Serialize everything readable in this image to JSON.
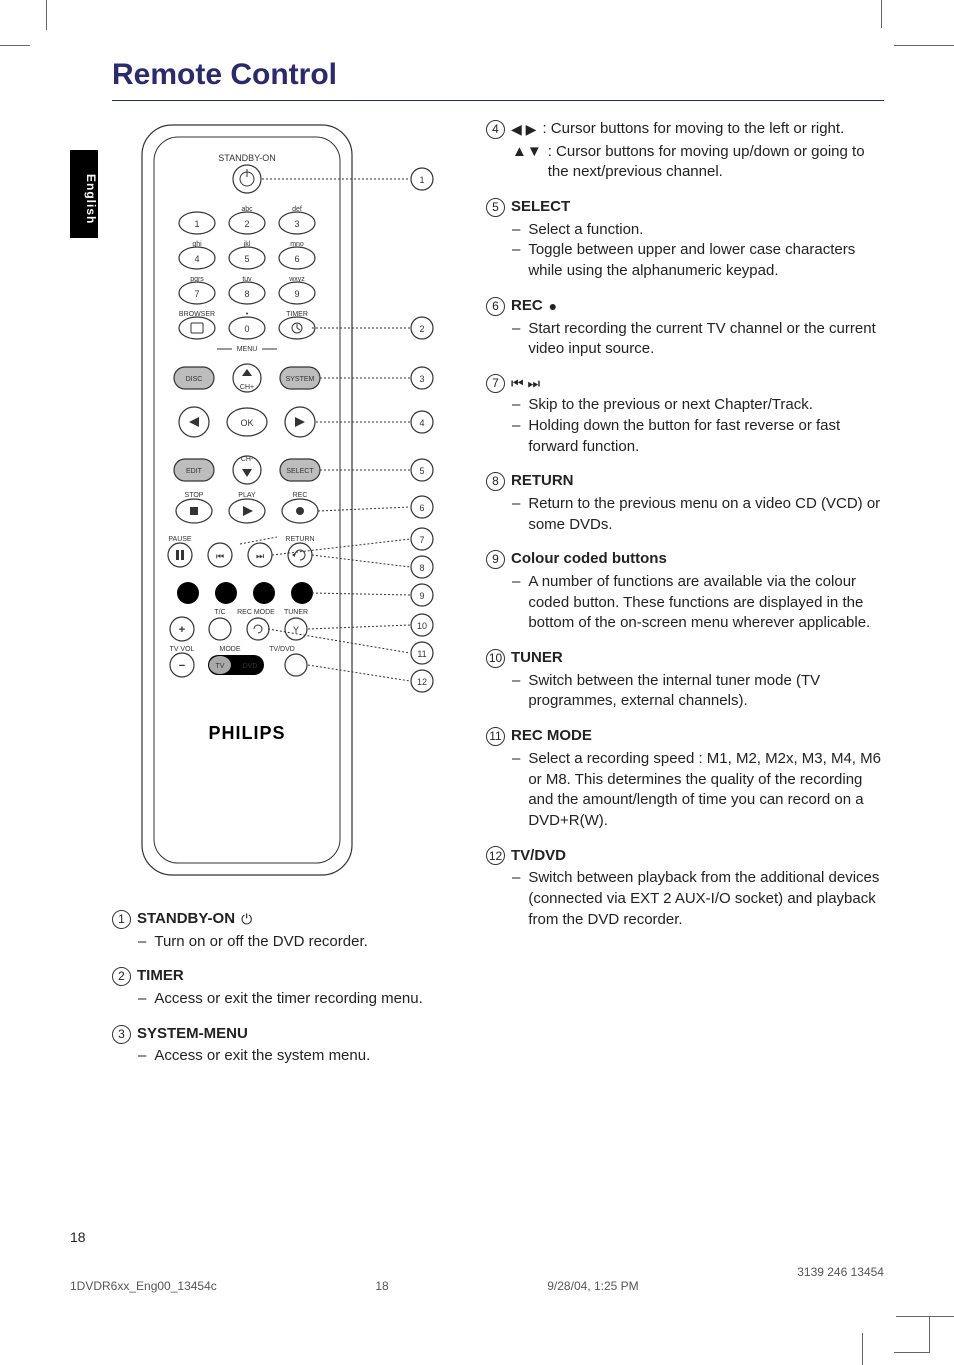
{
  "page": {
    "title": "Remote Control",
    "language_tab": "English",
    "page_number": "18",
    "footer_file": "1DVDR6xx_Eng00_13454c",
    "footer_page": "18",
    "footer_date": "9/28/04, 1:25 PM",
    "footer_code": "3139 246 13454"
  },
  "remote": {
    "brand": "PHILIPS",
    "top_label": "STANDBY-ON",
    "keys_row1": {
      "k2_top": "abc",
      "k3_top": "def"
    },
    "keys_row2": {
      "k4_top": "ghi",
      "k5_top": "jkl",
      "k6_top": "mno"
    },
    "keys_row3": {
      "k7_top": "pqrs",
      "k8_top": "tuv",
      "k9_top": "wxyz"
    },
    "label_browser": "BROWSER",
    "label_timer": "TIMER",
    "label_menu": "MENU",
    "btn_disc": "DISC",
    "btn_system": "SYSTEM",
    "btn_ok": "OK",
    "btn_edit": "EDIT",
    "btn_select": "SELECT",
    "label_ch": "CH",
    "label_stop": "STOP",
    "label_play": "PLAY",
    "label_rec": "REC",
    "label_pause": "PAUSE",
    "label_return": "RETURN",
    "label_tc": "T/C",
    "label_recmode": "REC MODE",
    "label_tuner": "TUNER",
    "label_tvvol": "TV VOL",
    "label_mode": "MODE",
    "label_tvdvd": "TV/DVD",
    "switch_tv": "TV",
    "switch_dvd": "DVD",
    "callouts": [
      "1",
      "2",
      "3",
      "4",
      "5",
      "6",
      "7",
      "8",
      "9",
      "10",
      "11",
      "12"
    ]
  },
  "left_items": [
    {
      "num": "1",
      "title": "STANDBY-ON",
      "sym": "⏻",
      "bullets": [
        "Turn on or off the DVD recorder."
      ]
    },
    {
      "num": "2",
      "title": "TIMER",
      "bullets": [
        "Access or exit the timer recording menu."
      ]
    },
    {
      "num": "3",
      "title": "SYSTEM-MENU",
      "bullets": [
        "Access or exit the system menu."
      ]
    }
  ],
  "right_items": [
    {
      "num": "4",
      "title": "",
      "lead_sym": "◀ ▶",
      "inline_text": ": Cursor buttons for moving to the left or right.",
      "sub": {
        "sym": "▲▼",
        "text": ": Cursor buttons for moving up/down or going to the next/previous channel."
      }
    },
    {
      "num": "5",
      "title": "SELECT",
      "bullets": [
        "Select a function.",
        "Toggle between upper and lower case characters while using the alphanumeric keypad."
      ]
    },
    {
      "num": "6",
      "title": "REC",
      "sym": "●",
      "bullets": [
        "Start recording the current TV channel or the current video input source."
      ]
    },
    {
      "num": "7",
      "title": "",
      "lead_sym": "⏮ ⏭",
      "bullets": [
        "Skip to the previous or next Chapter/Track.",
        "Holding down the button for fast reverse or fast forward function."
      ]
    },
    {
      "num": "8",
      "title": "RETURN",
      "bullets": [
        "Return to the previous menu on a video CD (VCD) or some DVDs."
      ]
    },
    {
      "num": "9",
      "title": "Colour coded buttons",
      "bullets": [
        "A number of functions are available via the colour coded button.  These functions are displayed in the bottom of the on-screen menu wherever applicable."
      ]
    },
    {
      "num": "10",
      "title": "TUNER",
      "bullets": [
        "Switch between the internal tuner mode (TV programmes, external channels)."
      ]
    },
    {
      "num": "11",
      "title": "REC MODE",
      "bullets": [
        "Select a recording speed : M1, M2, M2x, M3, M4, M6 or M8.  This determines the quality of the recording and the amount/length of time you can record on a DVD+R(W)."
      ]
    },
    {
      "num": "12",
      "title": "TV/DVD",
      "bullets": [
        "Switch between playback from the additional devices (connected via EXT 2 AUX-I/O socket) and playback from the DVD recorder."
      ]
    }
  ]
}
